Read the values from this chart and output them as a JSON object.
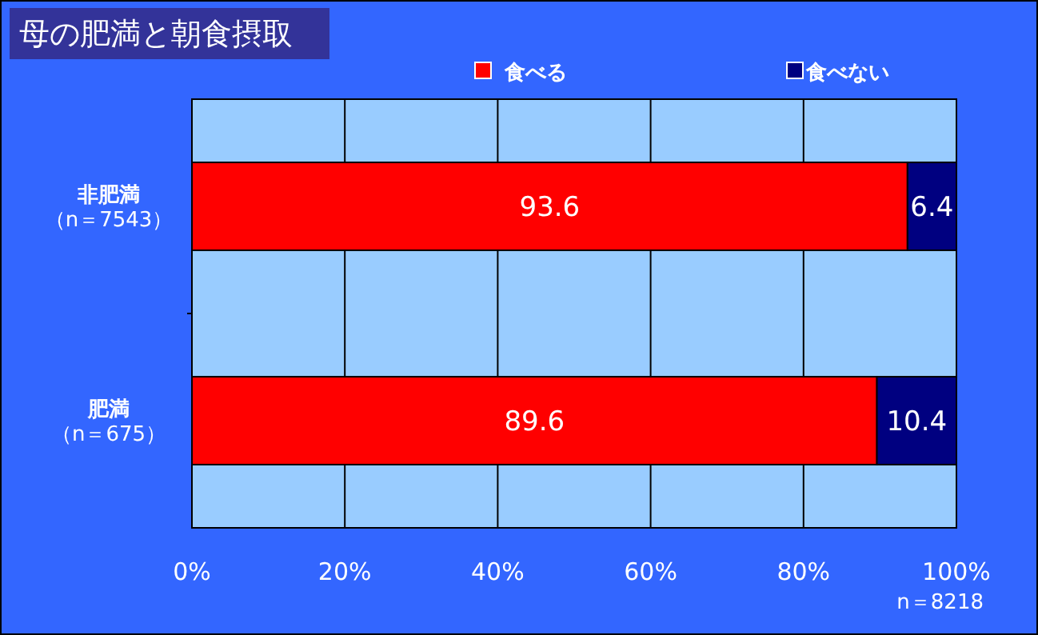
{
  "chart_data": {
    "type": "bar",
    "title": "母の肥満と朝食摂取",
    "orientation": "horizontal",
    "stacked": true,
    "categories": [
      "非肥満（n＝7543）",
      "肥満（n＝675）"
    ],
    "series": [
      {
        "name": "食べる",
        "color": "#ff0000",
        "values": [
          93.6,
          89.6
        ]
      },
      {
        "name": "食べない",
        "color": "#000080",
        "values": [
          6.4,
          10.4
        ]
      }
    ],
    "xlim": [
      0,
      100
    ],
    "xticks": [
      {
        "value": 0,
        "label": "0%"
      },
      {
        "value": 20,
        "label": "20%"
      },
      {
        "value": 40,
        "label": "40%"
      },
      {
        "value": 60,
        "label": "60%"
      },
      {
        "value": 80,
        "label": "80%"
      },
      {
        "value": 100,
        "label": "100%"
      }
    ],
    "grid": "x",
    "legend": "top",
    "data_labels": true,
    "annotations": [
      "n＝8218"
    ]
  }
}
